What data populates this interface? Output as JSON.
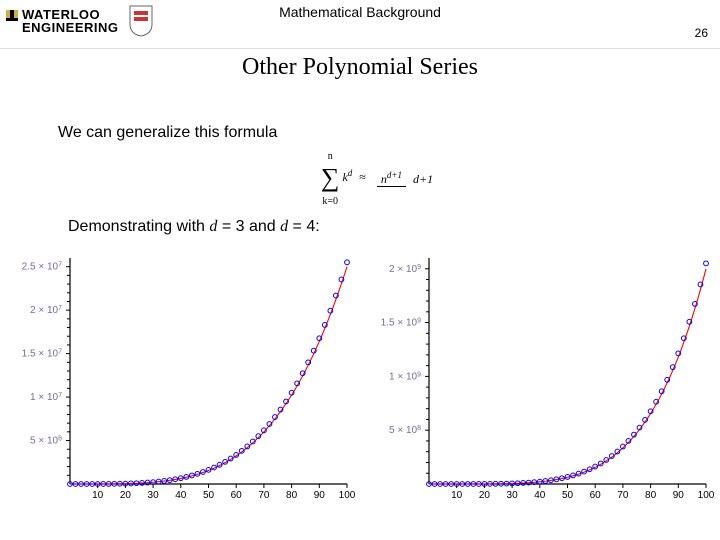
{
  "header": {
    "logo_top": "WATERLOO",
    "logo_bottom": "ENGINEERING",
    "section_title": "Mathematical Background",
    "page_number": "26"
  },
  "slide_title": "Other Polynomial Series",
  "body": {
    "line1": "We can generalize this formula",
    "line2_prefix": "Demonstrating with ",
    "line2_mid": " = 3 and ",
    "line2_suffix": " = 4:",
    "d": "d"
  },
  "formula": {
    "sum_upper": "n",
    "sum_lower": "k=0",
    "summand_base": "k",
    "summand_exp": "d",
    "approx": "≈",
    "num_base": "n",
    "num_exp": "d+1",
    "den": "d+1"
  },
  "chart_left": {
    "type": "scatter-line",
    "xlim": [
      0,
      100
    ],
    "ylim": [
      0,
      26000000
    ],
    "xtick_step": 10,
    "xticks": [
      "10",
      "20",
      "30",
      "40",
      "50",
      "60",
      "70",
      "80",
      "90",
      "100"
    ],
    "yticks": [
      {
        "v": 5000000,
        "label": "5 × 10",
        "exp": "6"
      },
      {
        "v": 10000000,
        "label": "1 × 10",
        "exp": "7"
      },
      {
        "v": 15000000,
        "label": "1.5 × 10",
        "exp": "7"
      },
      {
        "v": 20000000,
        "label": "2 × 10",
        "exp": "7"
      },
      {
        "v": 25000000,
        "label": "2.5 × 10",
        "exp": "7"
      }
    ],
    "curve_color": "#ff0000",
    "marker_color": "#0000ff",
    "axis_color": "#000000",
    "ylabel_color": "#7a6a9a",
    "plot_bg": "#ffffff",
    "d": 3,
    "x_values": [
      0,
      2,
      4,
      6,
      8,
      10,
      12,
      14,
      16,
      18,
      20,
      22,
      24,
      26,
      28,
      30,
      32,
      34,
      36,
      38,
      40,
      42,
      44,
      46,
      48,
      50,
      52,
      54,
      56,
      58,
      60,
      62,
      64,
      66,
      68,
      70,
      72,
      74,
      76,
      78,
      80,
      82,
      84,
      86,
      88,
      90,
      92,
      94,
      96,
      98,
      100
    ]
  },
  "chart_right": {
    "type": "scatter-line",
    "xlim": [
      0,
      100
    ],
    "ylim": [
      0,
      2100000000.0
    ],
    "xtick_step": 10,
    "xticks": [
      "10",
      "20",
      "30",
      "40",
      "50",
      "60",
      "70",
      "80",
      "90",
      "100"
    ],
    "yticks": [
      {
        "v": 500000000.0,
        "label": "5 × 10",
        "exp": "8"
      },
      {
        "v": 1000000000.0,
        "label": "1 × 10",
        "exp": "9"
      },
      {
        "v": 1500000000.0,
        "label": "1.5 × 10",
        "exp": "9"
      },
      {
        "v": 2000000000.0,
        "label": "2 × 10",
        "exp": "9"
      }
    ],
    "curve_color": "#ff0000",
    "marker_color": "#0000ff",
    "axis_color": "#000000",
    "ylabel_color": "#7a6a9a",
    "plot_bg": "#ffffff",
    "d": 4,
    "x_values": [
      0,
      2,
      4,
      6,
      8,
      10,
      12,
      14,
      16,
      18,
      20,
      22,
      24,
      26,
      28,
      30,
      32,
      34,
      36,
      38,
      40,
      42,
      44,
      46,
      48,
      50,
      52,
      54,
      56,
      58,
      60,
      62,
      64,
      66,
      68,
      70,
      72,
      74,
      76,
      78,
      80,
      82,
      84,
      86,
      88,
      90,
      92,
      94,
      96,
      98,
      100
    ]
  }
}
